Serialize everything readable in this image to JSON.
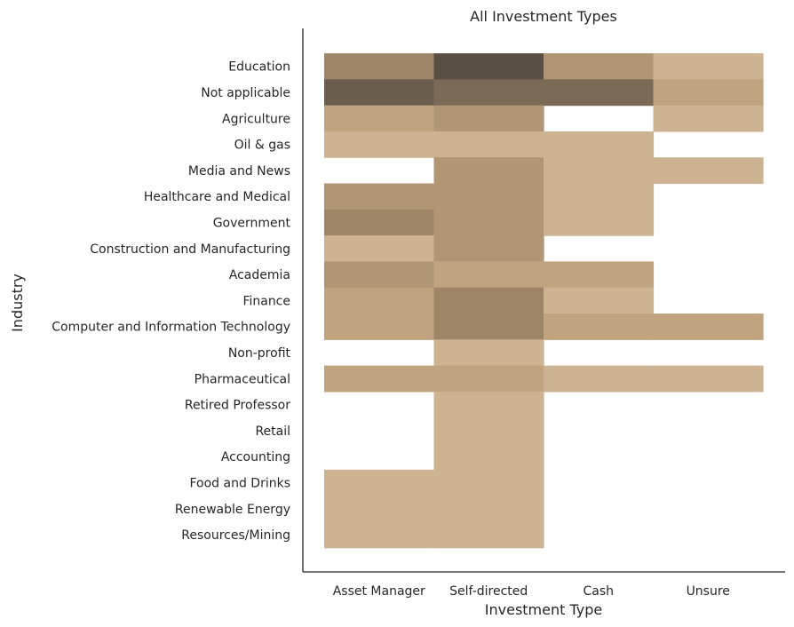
{
  "chart_data": {
    "type": "heatmap",
    "title": "All Investment Types",
    "xlabel": "Investment Type",
    "ylabel": "Industry",
    "grid": false,
    "legend": "none",
    "x_categories": [
      "Asset Manager",
      "Self-directed",
      "Cash",
      "Unsure"
    ],
    "y_categories": [
      "Education",
      "Not applicable",
      "Agriculture",
      "Oil & gas",
      "Media and News",
      "Healthcare and Medical",
      "Government",
      "Construction and Manufacturing",
      "Academia",
      "Finance",
      "Computer and Information Technology",
      "Non-profit",
      "Pharmaceutical",
      "Retired Professor ",
      "Retail",
      "Accounting",
      "Food and Drinks",
      "Renewable Energy",
      "Resources/Mining"
    ],
    "values": [
      [
        4,
        7,
        3,
        1
      ],
      [
        6,
        5,
        5,
        2
      ],
      [
        2,
        3,
        null,
        1
      ],
      [
        1,
        1,
        1,
        null
      ],
      [
        null,
        3,
        1,
        1
      ],
      [
        3,
        3,
        1,
        null
      ],
      [
        4,
        3,
        1,
        null
      ],
      [
        1,
        3,
        null,
        null
      ],
      [
        3,
        2,
        2,
        null
      ],
      [
        2,
        4,
        1,
        null
      ],
      [
        2,
        4,
        2,
        2
      ],
      [
        null,
        1,
        null,
        null
      ],
      [
        2,
        2,
        1,
        1
      ],
      [
        null,
        1,
        null,
        null
      ],
      [
        null,
        1,
        null,
        null
      ],
      [
        null,
        1,
        null,
        null
      ],
      [
        1,
        1,
        null,
        null
      ],
      [
        1,
        1,
        null,
        null
      ],
      [
        1,
        1,
        null,
        null
      ]
    ],
    "colors": {
      "1": "#ceb392",
      "2": "#c0a47f",
      "3": "#b09674",
      "4": "#9e8567",
      "5": "#7b6a56",
      "6": "#6a5d4d",
      "7": "#5a4f45"
    }
  }
}
